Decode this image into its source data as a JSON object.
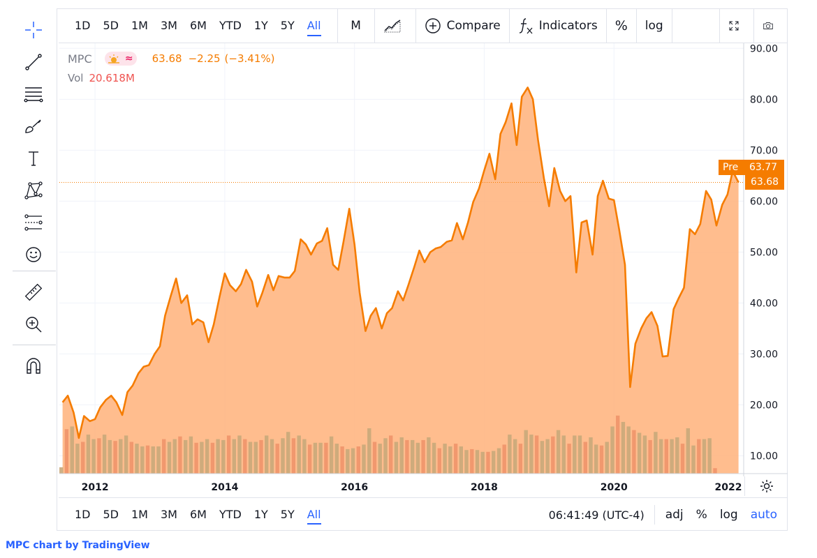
{
  "timeframes": [
    "1D",
    "5D",
    "1M",
    "3M",
    "6M",
    "YTD",
    "1Y",
    "5Y",
    "All"
  ],
  "active_timeframe": "All",
  "toolbar": {
    "interval": "M",
    "compare": "Compare",
    "indicators": "Indicators",
    "percent": "%",
    "log": "log"
  },
  "legend": {
    "symbol": "MPC",
    "price": "63.68",
    "change": "−2.25",
    "change_pct": "(−3.41%)",
    "vol_label": "Vol",
    "vol_value": "20.618M"
  },
  "price_tags": {
    "pre_label": "Pre",
    "pre_value": "63.77",
    "last_value": "63.68"
  },
  "bottom": {
    "time": "06:41:49 (UTC-4)",
    "adj": "adj",
    "percent": "%",
    "log": "log",
    "auto": "auto"
  },
  "attribution": {
    "symbol": "MPC",
    "text": " chart by ",
    "brand": "TradingView"
  },
  "colors": {
    "line": "#f57c00",
    "area": "#ffb27a",
    "vol_up": "#c9a97a",
    "vol_down": "#f0936a",
    "accent": "#2962ff"
  },
  "chart_data": {
    "type": "area",
    "x_range": [
      2011.45,
      2022.0
    ],
    "ylim": [
      6.5,
      91
    ],
    "y_ticks": [
      "10.00",
      "20.00",
      "30.00",
      "40.00",
      "50.00",
      "60.00",
      "70.00",
      "80.00",
      "90.00"
    ],
    "x_ticks": [
      "2012",
      "2014",
      "2016",
      "2018",
      "2020",
      "2022"
    ],
    "price_series": {
      "name": "MPC",
      "points": [
        [
          2011.5,
          20.5
        ],
        [
          2011.58,
          21.8
        ],
        [
          2011.67,
          18.5
        ],
        [
          2011.75,
          13.5
        ],
        [
          2011.83,
          17.8
        ],
        [
          2011.92,
          16.8
        ],
        [
          2012.0,
          17.2
        ],
        [
          2012.08,
          19.5
        ],
        [
          2012.17,
          21.0
        ],
        [
          2012.25,
          21.8
        ],
        [
          2012.33,
          20.5
        ],
        [
          2012.42,
          18.0
        ],
        [
          2012.5,
          22.5
        ],
        [
          2012.58,
          23.8
        ],
        [
          2012.67,
          26.2
        ],
        [
          2012.75,
          27.5
        ],
        [
          2012.83,
          27.8
        ],
        [
          2012.92,
          30.0
        ],
        [
          2013.0,
          31.5
        ],
        [
          2013.08,
          37.5
        ],
        [
          2013.17,
          41.5
        ],
        [
          2013.25,
          44.8
        ],
        [
          2013.33,
          40.0
        ],
        [
          2013.42,
          41.5
        ],
        [
          2013.5,
          35.8
        ],
        [
          2013.58,
          36.8
        ],
        [
          2013.67,
          36.2
        ],
        [
          2013.75,
          32.3
        ],
        [
          2013.83,
          35.8
        ],
        [
          2013.92,
          41.2
        ],
        [
          2014.0,
          45.8
        ],
        [
          2014.08,
          43.5
        ],
        [
          2014.17,
          42.3
        ],
        [
          2014.25,
          43.7
        ],
        [
          2014.33,
          46.5
        ],
        [
          2014.42,
          44.2
        ],
        [
          2014.5,
          39.3
        ],
        [
          2014.58,
          42.0
        ],
        [
          2014.67,
          45.5
        ],
        [
          2014.75,
          42.5
        ],
        [
          2014.83,
          45.3
        ],
        [
          2014.92,
          45.0
        ],
        [
          2015.0,
          45.0
        ],
        [
          2015.08,
          46.3
        ],
        [
          2015.17,
          52.5
        ],
        [
          2015.25,
          51.5
        ],
        [
          2015.33,
          49.5
        ],
        [
          2015.42,
          51.7
        ],
        [
          2015.5,
          52.2
        ],
        [
          2015.58,
          54.7
        ],
        [
          2015.67,
          47.5
        ],
        [
          2015.75,
          46.5
        ],
        [
          2015.83,
          52.0
        ],
        [
          2015.92,
          58.5
        ],
        [
          2016.0,
          51.5
        ],
        [
          2016.08,
          42.0
        ],
        [
          2016.17,
          34.5
        ],
        [
          2016.25,
          37.5
        ],
        [
          2016.33,
          39.0
        ],
        [
          2016.42,
          35.0
        ],
        [
          2016.5,
          38.0
        ],
        [
          2016.58,
          39.0
        ],
        [
          2016.67,
          42.3
        ],
        [
          2016.75,
          40.5
        ],
        [
          2016.83,
          43.5
        ],
        [
          2016.92,
          47.0
        ],
        [
          2017.0,
          50.3
        ],
        [
          2017.08,
          48.0
        ],
        [
          2017.17,
          50.0
        ],
        [
          2017.25,
          50.7
        ],
        [
          2017.33,
          51.0
        ],
        [
          2017.42,
          52.0
        ],
        [
          2017.5,
          52.3
        ],
        [
          2017.58,
          55.7
        ],
        [
          2017.67,
          52.5
        ],
        [
          2017.75,
          55.8
        ],
        [
          2017.83,
          59.8
        ],
        [
          2017.92,
          62.5
        ],
        [
          2018.0,
          66.0
        ],
        [
          2018.08,
          69.3
        ],
        [
          2018.17,
          64.3
        ],
        [
          2018.25,
          73.2
        ],
        [
          2018.33,
          75.5
        ],
        [
          2018.42,
          79.2
        ],
        [
          2018.5,
          71.0
        ],
        [
          2018.58,
          80.5
        ],
        [
          2018.67,
          82.3
        ],
        [
          2018.75,
          80.0
        ],
        [
          2018.83,
          72.0
        ],
        [
          2018.92,
          64.5
        ],
        [
          2019.0,
          59.0
        ],
        [
          2019.08,
          66.5
        ],
        [
          2019.17,
          62.0
        ],
        [
          2019.25,
          60.0
        ],
        [
          2019.33,
          61.0
        ],
        [
          2019.42,
          46.0
        ],
        [
          2019.5,
          55.8
        ],
        [
          2019.58,
          56.2
        ],
        [
          2019.67,
          49.5
        ],
        [
          2019.75,
          61.0
        ],
        [
          2019.83,
          64.0
        ],
        [
          2019.92,
          60.5
        ],
        [
          2020.0,
          60.2
        ],
        [
          2020.08,
          54.5
        ],
        [
          2020.17,
          47.5
        ],
        [
          2020.25,
          23.5
        ],
        [
          2020.33,
          32.0
        ],
        [
          2020.42,
          35.0
        ],
        [
          2020.5,
          37.0
        ],
        [
          2020.58,
          38.2
        ],
        [
          2020.67,
          35.5
        ],
        [
          2020.75,
          29.5
        ],
        [
          2020.83,
          29.6
        ],
        [
          2020.92,
          38.8
        ],
        [
          2021.0,
          41.0
        ],
        [
          2021.08,
          43.0
        ],
        [
          2021.17,
          54.5
        ],
        [
          2021.25,
          53.5
        ],
        [
          2021.33,
          55.5
        ],
        [
          2021.42,
          62.0
        ],
        [
          2021.5,
          60.3
        ],
        [
          2021.58,
          55.2
        ],
        [
          2021.67,
          59.3
        ],
        [
          2021.75,
          61.3
        ],
        [
          2021.83,
          65.9
        ],
        [
          2021.92,
          63.68
        ]
      ]
    },
    "volume_series": {
      "name": "Vol",
      "bar_x_start": 2011.45,
      "bar_step": 0.0833,
      "values": [
        0.07,
        0.49,
        0.52,
        0.33,
        0.35,
        0.43,
        0.38,
        0.39,
        0.43,
        0.37,
        0.36,
        0.38,
        0.42,
        0.35,
        0.33,
        0.3,
        0.31,
        0.3,
        0.3,
        0.38,
        0.35,
        0.38,
        0.41,
        0.37,
        0.41,
        0.34,
        0.35,
        0.38,
        0.34,
        0.38,
        0.37,
        0.42,
        0.38,
        0.42,
        0.38,
        0.35,
        0.35,
        0.37,
        0.42,
        0.38,
        0.33,
        0.39,
        0.46,
        0.39,
        0.42,
        0.38,
        0.32,
        0.34,
        0.34,
        0.34,
        0.41,
        0.33,
        0.3,
        0.27,
        0.28,
        0.3,
        0.32,
        0.5,
        0.35,
        0.33,
        0.39,
        0.42,
        0.35,
        0.4,
        0.37,
        0.37,
        0.34,
        0.37,
        0.4,
        0.34,
        0.28,
        0.33,
        0.3,
        0.33,
        0.3,
        0.26,
        0.27,
        0.26,
        0.24,
        0.24,
        0.25,
        0.28,
        0.32,
        0.43,
        0.38,
        0.33,
        0.48,
        0.43,
        0.42,
        0.36,
        0.38,
        0.41,
        0.48,
        0.42,
        0.33,
        0.42,
        0.42,
        0.35,
        0.4,
        0.32,
        0.31,
        0.35,
        0.52,
        0.64,
        0.57,
        0.52,
        0.48,
        0.45,
        0.42,
        0.37,
        0.46,
        0.38,
        0.38,
        0.38,
        0.4,
        0.33,
        0.5,
        0.31,
        0.38,
        0.38,
        0.39,
        0.06
      ]
    }
  }
}
